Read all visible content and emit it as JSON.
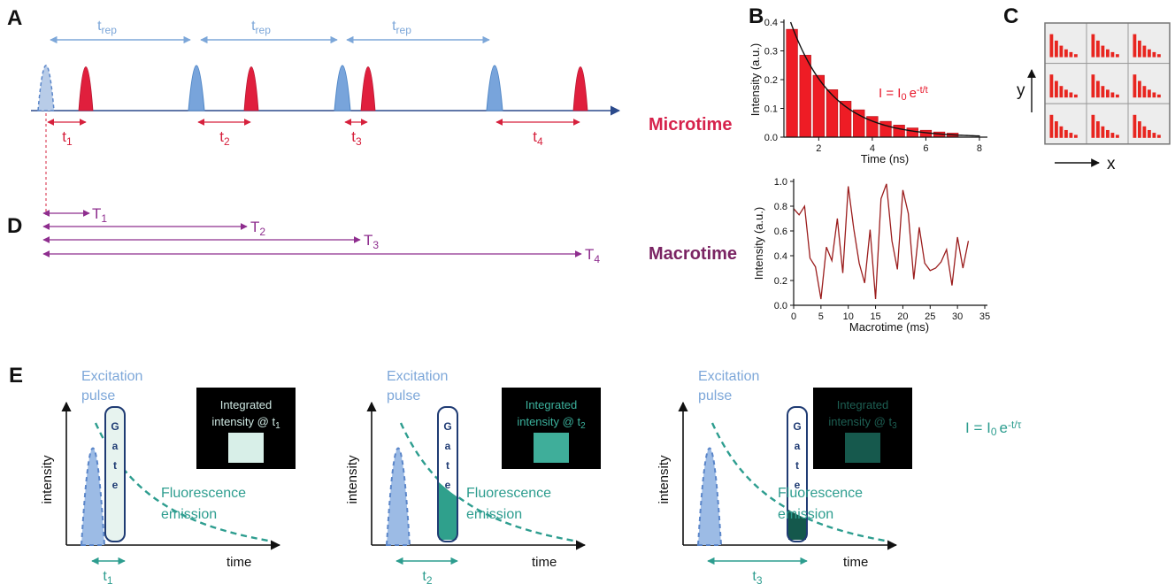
{
  "colors": {
    "excitation_blue": "#78a4db",
    "emission_red": "#e01f3d",
    "trep_blue": "#7da7d9",
    "microtime_red": "#d6234c",
    "macrotime_purple": "#7a2463",
    "arrow_purple": "#8e2d8e",
    "teal": "#2d9d8f",
    "gate_navy": "#1f3b73"
  },
  "panel_a": {
    "label": "A",
    "trep": {
      "base": "t",
      "sub": "rep"
    },
    "microtimes": [
      {
        "base": "t",
        "sub": "1"
      },
      {
        "base": "t",
        "sub": "2"
      },
      {
        "base": "t",
        "sub": "3"
      },
      {
        "base": "t",
        "sub": "4"
      }
    ],
    "microtime_label": "Microtime"
  },
  "panel_d": {
    "label": "D",
    "macrotimes": [
      {
        "base": "T",
        "sub": "1"
      },
      {
        "base": "T",
        "sub": "2"
      },
      {
        "base": "T",
        "sub": "3"
      },
      {
        "base": "T",
        "sub": "4"
      }
    ],
    "macrotime_label": "Macrotime"
  },
  "panel_b": {
    "label": "B",
    "annotation": {
      "pre": "I = I",
      "sub": "0",
      "mid": "e",
      "sup": "-t/t"
    }
  },
  "panel_c": {
    "label": "C",
    "x_axis": "x",
    "y_axis": "y"
  },
  "panel_e": {
    "label": "E",
    "formula": {
      "pre": "I = I",
      "sub": "0",
      "mid": "e",
      "sup": "-t/τ"
    },
    "subpanels": [
      {
        "excitation1": "Excitation",
        "excitation2": "pulse",
        "gate": [
          "G",
          "a",
          "t",
          "e"
        ],
        "integrated1": "Integrated",
        "integrated2": "intensity @ t",
        "integrated_sub": "1",
        "fluorescence1": "Fluorescence",
        "fluorescence2": "emission",
        "ylabel": "intensity",
        "xlabel": "time",
        "t": {
          "base": "t",
          "sub": "1"
        }
      },
      {
        "excitation1": "Excitation",
        "excitation2": "pulse",
        "gate": [
          "G",
          "a",
          "t",
          "e"
        ],
        "integrated1": "Integrated",
        "integrated2": "intensity @ t",
        "integrated_sub": "2",
        "fluorescence1": "Fluorescence",
        "fluorescence2": "emission",
        "ylabel": "intensity",
        "xlabel": "time",
        "t": {
          "base": "t",
          "sub": "2"
        }
      },
      {
        "excitation1": "Excitation",
        "excitation2": "pulse",
        "gate": [
          "G",
          "a",
          "t",
          "e"
        ],
        "integrated1": "Integrated",
        "integrated2": "intensity @ t",
        "integrated_sub": "3",
        "fluorescence1": "Fluorescence",
        "fluorescence2": "emission",
        "ylabel": "intensity",
        "xlabel": "time",
        "t": {
          "base": "t",
          "sub": "3"
        }
      }
    ]
  },
  "chart_data": [
    {
      "id": "decay",
      "type": "bar",
      "title": "",
      "xlabel": "Time (ns)",
      "ylabel": "Intensity (a.u.)",
      "xlim": [
        0.7,
        8.2
      ],
      "ylim": [
        0,
        0.4
      ],
      "xticks": [
        2,
        4,
        6,
        8
      ],
      "yticks": [
        "0.0",
        "0.1",
        "0.2",
        "0.3",
        "0.4"
      ],
      "x": [
        1,
        1.5,
        2,
        2.5,
        3,
        3.5,
        4,
        4.5,
        5,
        5.5,
        6,
        6.5,
        7
      ],
      "values": [
        0.375,
        0.285,
        0.215,
        0.165,
        0.125,
        0.095,
        0.072,
        0.055,
        0.042,
        0.032,
        0.024,
        0.018,
        0.014
      ],
      "bar_width": 0.42,
      "bar_color": "#ee1c25",
      "bar_stroke": "#b01016",
      "fit": {
        "I0": 0.4,
        "x0": 0.95,
        "tau": 1.55,
        "color": "#111111"
      }
    },
    {
      "id": "trace",
      "type": "line",
      "title": "",
      "xlabel": "Macrotime (ms)",
      "ylabel": "Intensity (a.u.)",
      "xlim": [
        0,
        35
      ],
      "ylim": [
        0,
        1
      ],
      "xticks": [
        0,
        5,
        10,
        15,
        20,
        25,
        30,
        35
      ],
      "yticks": [
        "0.0",
        "0.2",
        "0.4",
        "0.6",
        "0.8",
        "1.0"
      ],
      "x": [
        0,
        1,
        2,
        3,
        4,
        5,
        6,
        7,
        8,
        9,
        10,
        11,
        12,
        13,
        14,
        15,
        16,
        17,
        18,
        19,
        20,
        21,
        22,
        23,
        24,
        25,
        26,
        27,
        28,
        29,
        30,
        31,
        32
      ],
      "values": [
        0.78,
        0.73,
        0.8,
        0.38,
        0.31,
        0.05,
        0.47,
        0.36,
        0.7,
        0.26,
        0.96,
        0.62,
        0.34,
        0.18,
        0.61,
        0.05,
        0.86,
        0.98,
        0.52,
        0.29,
        0.93,
        0.74,
        0.21,
        0.63,
        0.34,
        0.28,
        0.3,
        0.35,
        0.45,
        0.16,
        0.55,
        0.3,
        0.52
      ],
      "line_color": "#9b1d1d"
    },
    {
      "id": "pixel_histograms",
      "type": "bar",
      "grid": [
        3,
        3
      ],
      "values": [
        1,
        0.72,
        0.5,
        0.34,
        0.22,
        0.13
      ],
      "bar_color": "#e8251f"
    }
  ]
}
